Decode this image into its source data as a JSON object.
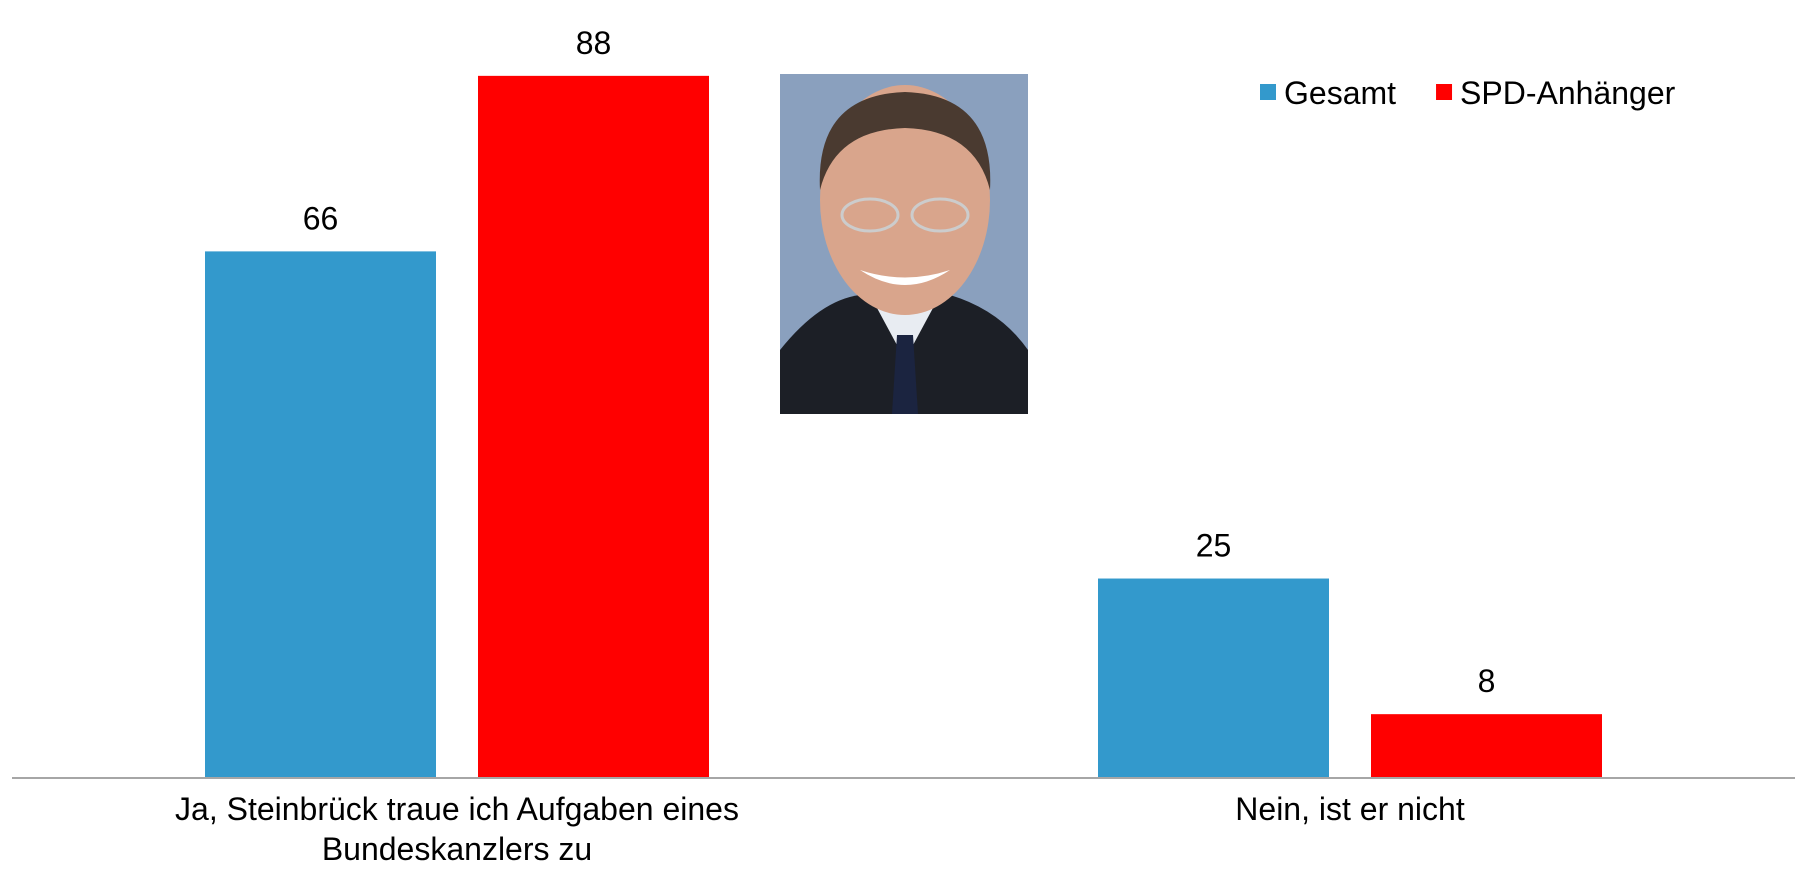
{
  "chart_data": {
    "type": "bar",
    "categories": [
      "Ja, Steinbrück traue ich Aufgaben eines Bundeskanzlers zu",
      "Nein, ist er nicht"
    ],
    "series": [
      {
        "name": "Gesamt",
        "color": "#3399cc",
        "values": [
          66,
          25
        ]
      },
      {
        "name": "SPD-Anhänger",
        "color": "#ff0000",
        "values": [
          88,
          8
        ]
      }
    ],
    "ylim": [
      0,
      95
    ],
    "legend": "top-right"
  }
}
